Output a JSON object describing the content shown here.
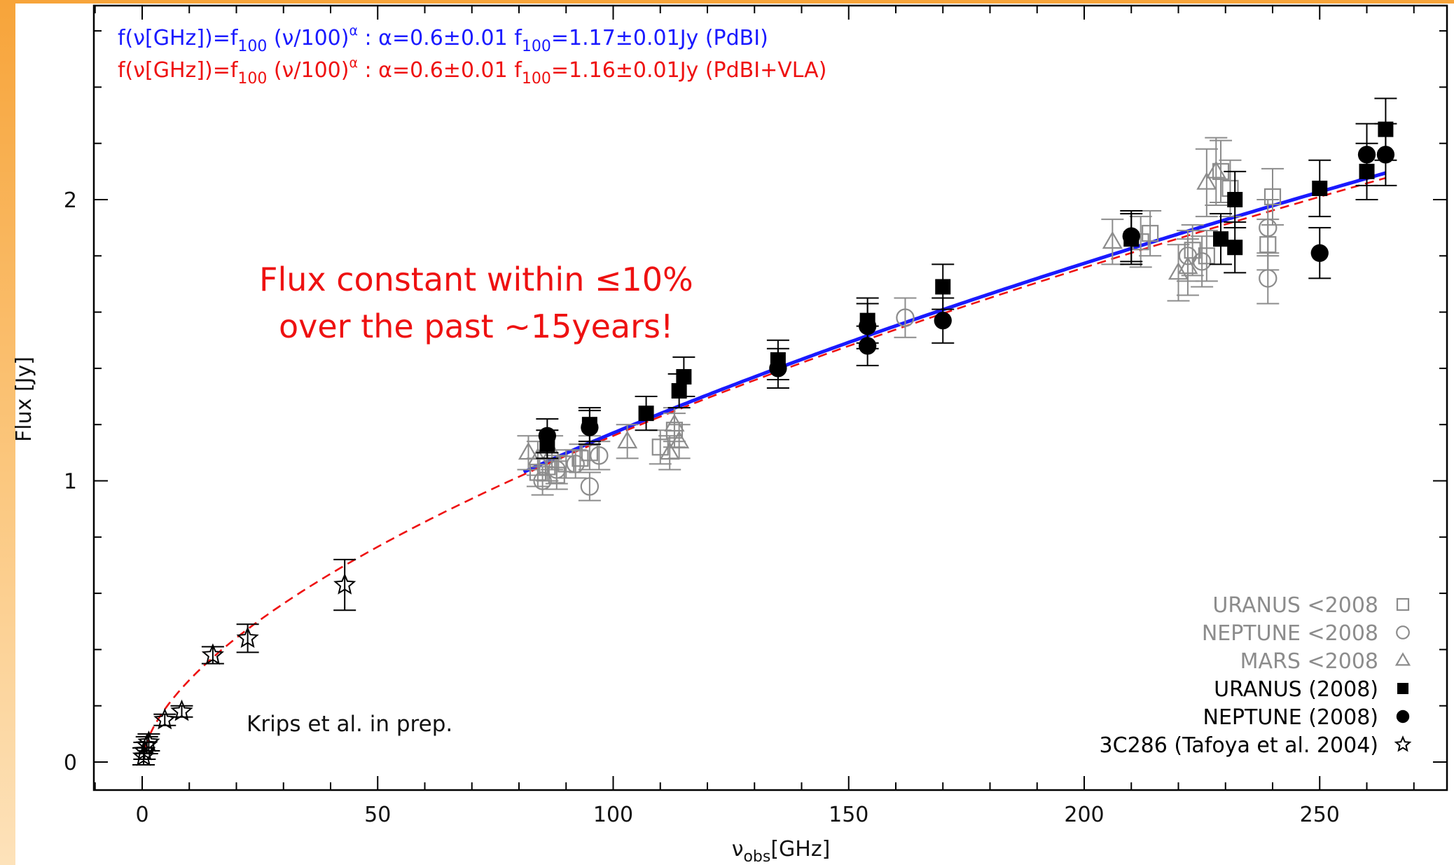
{
  "colors": {
    "fit_pdbi": "#1a1aff",
    "fit_pdbi_vla": "#ee1111",
    "old_data": "#8c8c8c",
    "new_data": "#000000",
    "frame": "#000000",
    "accent_band": "#f7a43a"
  },
  "annotations": {
    "claim_line1": "Flux constant within ≤10%",
    "claim_line2": "over the past  ~15years!",
    "credit": "Krips et al. in prep."
  },
  "chart_data": {
    "type": "scatter",
    "xlabel": "ν_obs[GHz]",
    "ylabel": "Flux [Jy]",
    "xlim": [
      -10,
      275
    ],
    "ylim": [
      -0.1,
      2.7
    ],
    "x_ticks": [
      0,
      50,
      100,
      150,
      200,
      250
    ],
    "y_ticks": [
      0,
      1,
      2
    ],
    "x_minor_step": 10,
    "y_minor_step": 0.2,
    "grid": false,
    "legend_position": "bottom-right",
    "fits": [
      {
        "name": "PdBI",
        "color": "#1a1aff",
        "style": "solid",
        "text_prefix": "f(ν[GHz])=f",
        "text_sub": "100",
        "text_mid": " (ν/100)",
        "text_sup": "α",
        "text_alpha": " : α=0.6±0.01  f",
        "text_sub2": "100",
        "text_suffix": "=1.17±0.01Jy (PdBI)",
        "f100": 1.17,
        "alpha": 0.6,
        "x_range": [
          81,
          264
        ]
      },
      {
        "name": "PdBI+VLA",
        "color": "#ee1111",
        "style": "dashed",
        "text_prefix": "f(ν[GHz])=f",
        "text_sub": "100",
        "text_mid": " (ν/100)",
        "text_sup": "α",
        "text_alpha": " : α=0.6±0.01  f",
        "text_sub2": "100",
        "text_suffix": "=1.16±0.01Jy (PdBI+VLA)",
        "f100": 1.16,
        "alpha": 0.6,
        "x_range": [
          0.5,
          264
        ]
      }
    ],
    "series": [
      {
        "name": "URANUS <2008",
        "marker": "square-open",
        "color": "#8c8c8c",
        "points": [
          {
            "x": 84,
            "y": 1.03,
            "err": 0.05
          },
          {
            "x": 86,
            "y": 1.05,
            "err": 0.05
          },
          {
            "x": 88,
            "y": 1.02,
            "err": 0.05
          },
          {
            "x": 90,
            "y": 1.06,
            "err": 0.05
          },
          {
            "x": 93,
            "y": 1.08,
            "err": 0.05
          },
          {
            "x": 95,
            "y": 1.1,
            "err": 0.06
          },
          {
            "x": 110,
            "y": 1.12,
            "err": 0.06
          },
          {
            "x": 113,
            "y": 1.18,
            "err": 0.06
          },
          {
            "x": 212,
            "y": 1.85,
            "err": 0.09
          },
          {
            "x": 214,
            "y": 1.88,
            "err": 0.08
          },
          {
            "x": 223,
            "y": 1.82,
            "err": 0.09
          },
          {
            "x": 226,
            "y": 1.8,
            "err": 0.09
          },
          {
            "x": 229,
            "y": 2.1,
            "err": 0.11
          },
          {
            "x": 231,
            "y": 2.04,
            "err": 0.1
          },
          {
            "x": 240,
            "y": 2.01,
            "err": 0.1
          },
          {
            "x": 239,
            "y": 1.84,
            "err": 0.09
          }
        ]
      },
      {
        "name": "NEPTUNE <2008",
        "marker": "circle-open",
        "color": "#8c8c8c",
        "points": [
          {
            "x": 85,
            "y": 1.0,
            "err": 0.05
          },
          {
            "x": 88,
            "y": 1.04,
            "err": 0.05
          },
          {
            "x": 92,
            "y": 1.06,
            "err": 0.05
          },
          {
            "x": 95,
            "y": 0.98,
            "err": 0.05
          },
          {
            "x": 97,
            "y": 1.09,
            "err": 0.05
          },
          {
            "x": 162,
            "y": 1.58,
            "err": 0.07
          },
          {
            "x": 222,
            "y": 1.8,
            "err": 0.09
          },
          {
            "x": 225,
            "y": 1.78,
            "err": 0.09
          },
          {
            "x": 239,
            "y": 1.9,
            "err": 0.1
          },
          {
            "x": 239,
            "y": 1.72,
            "err": 0.09
          }
        ]
      },
      {
        "name": "MARS <2008",
        "marker": "triangle-open",
        "color": "#8c8c8c",
        "points": [
          {
            "x": 82,
            "y": 1.1,
            "err": 0.06
          },
          {
            "x": 84,
            "y": 1.08,
            "err": 0.06
          },
          {
            "x": 87,
            "y": 1.1,
            "err": 0.06
          },
          {
            "x": 103,
            "y": 1.14,
            "err": 0.06
          },
          {
            "x": 112,
            "y": 1.1,
            "err": 0.06
          },
          {
            "x": 113,
            "y": 1.2,
            "err": 0.06
          },
          {
            "x": 114,
            "y": 1.14,
            "err": 0.06
          },
          {
            "x": 206,
            "y": 1.85,
            "err": 0.08
          },
          {
            "x": 220,
            "y": 1.74,
            "err": 0.1
          },
          {
            "x": 222,
            "y": 1.76,
            "err": 0.1
          },
          {
            "x": 226,
            "y": 2.06,
            "err": 0.12
          },
          {
            "x": 228,
            "y": 2.1,
            "err": 0.12
          }
        ]
      },
      {
        "name": "URANUS (2008)",
        "marker": "square-filled",
        "color": "#000000",
        "points": [
          {
            "x": 86,
            "y": 1.13,
            "err": 0.05
          },
          {
            "x": 95,
            "y": 1.2,
            "err": 0.06
          },
          {
            "x": 107,
            "y": 1.24,
            "err": 0.06
          },
          {
            "x": 114,
            "y": 1.32,
            "err": 0.06
          },
          {
            "x": 115,
            "y": 1.37,
            "err": 0.07
          },
          {
            "x": 135,
            "y": 1.43,
            "err": 0.07
          },
          {
            "x": 154,
            "y": 1.57,
            "err": 0.08
          },
          {
            "x": 170,
            "y": 1.69,
            "err": 0.08
          },
          {
            "x": 210,
            "y": 1.86,
            "err": 0.09
          },
          {
            "x": 229,
            "y": 1.86,
            "err": 0.09
          },
          {
            "x": 232,
            "y": 2.0,
            "err": 0.1
          },
          {
            "x": 232,
            "y": 1.83,
            "err": 0.09
          },
          {
            "x": 250,
            "y": 2.04,
            "err": 0.1
          },
          {
            "x": 260,
            "y": 2.1,
            "err": 0.1
          },
          {
            "x": 264,
            "y": 2.25,
            "err": 0.11
          }
        ]
      },
      {
        "name": "NEPTUNE (2008)",
        "marker": "circle-filled",
        "color": "#000000",
        "points": [
          {
            "x": 86,
            "y": 1.16,
            "err": 0.06
          },
          {
            "x": 95,
            "y": 1.19,
            "err": 0.06
          },
          {
            "x": 135,
            "y": 1.4,
            "err": 0.07
          },
          {
            "x": 154,
            "y": 1.55,
            "err": 0.08
          },
          {
            "x": 154,
            "y": 1.48,
            "err": 0.07
          },
          {
            "x": 170,
            "y": 1.57,
            "err": 0.08
          },
          {
            "x": 210,
            "y": 1.87,
            "err": 0.09
          },
          {
            "x": 250,
            "y": 1.81,
            "err": 0.09
          },
          {
            "x": 260,
            "y": 2.16,
            "err": 0.11
          },
          {
            "x": 264,
            "y": 2.16,
            "err": 0.11
          }
        ]
      },
      {
        "name": "3C286 (Tafoya et al. 2004)",
        "marker": "star-open",
        "color": "#000000",
        "points": [
          {
            "x": 0.3,
            "y": 0.02,
            "err": 0.03
          },
          {
            "x": 0.5,
            "y": 0.04,
            "err": 0.03
          },
          {
            "x": 1.0,
            "y": 0.06,
            "err": 0.03
          },
          {
            "x": 1.4,
            "y": 0.07,
            "err": 0.03
          },
          {
            "x": 4.8,
            "y": 0.15,
            "err": 0.02
          },
          {
            "x": 8.4,
            "y": 0.18,
            "err": 0.02
          },
          {
            "x": 15.0,
            "y": 0.38,
            "err": 0.03
          },
          {
            "x": 22.4,
            "y": 0.44,
            "err": 0.05
          },
          {
            "x": 43.0,
            "y": 0.63,
            "err": 0.09
          }
        ]
      }
    ]
  }
}
